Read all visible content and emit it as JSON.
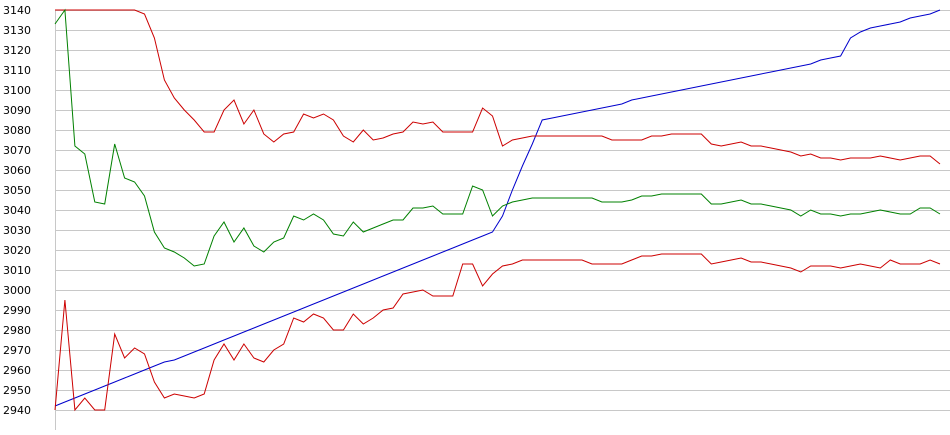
{
  "chart_data": {
    "type": "line",
    "title": "",
    "xlabel": "",
    "ylabel": "",
    "ylim": [
      2940,
      3140
    ],
    "yticks": [
      2940,
      2950,
      2960,
      2970,
      2980,
      2990,
      3000,
      3010,
      3020,
      3030,
      3040,
      3050,
      3060,
      3070,
      3080,
      3090,
      3100,
      3110,
      3120,
      3130,
      3140
    ],
    "grid": true,
    "x": [
      0,
      1,
      2,
      3,
      4,
      5,
      6,
      7,
      8,
      9,
      10,
      11,
      12,
      13,
      14,
      15,
      16,
      17,
      18,
      19,
      20,
      21,
      22,
      23,
      24,
      25,
      26,
      27,
      28,
      29,
      30,
      31,
      32,
      33,
      34,
      35,
      36,
      37,
      38,
      39,
      40,
      41,
      42,
      43,
      44,
      45,
      46,
      47,
      48,
      49,
      50,
      51,
      52,
      53,
      54,
      55,
      56,
      57,
      58,
      59,
      60,
      61,
      62,
      63,
      64,
      65,
      66,
      67,
      68,
      69,
      70,
      71,
      72,
      73,
      74,
      75,
      76,
      77,
      78,
      79,
      80,
      81,
      82,
      83,
      84,
      85,
      86,
      87,
      88,
      89
    ],
    "series": [
      {
        "color": "#0000cc",
        "values": [
          2942,
          2944,
          2946,
          2948,
          2950,
          2952,
          2954,
          2956,
          2958,
          2960,
          2962,
          2964,
          2965,
          2967,
          2969,
          2971,
          2973,
          2975,
          2977,
          2979,
          2981,
          2983,
          2985,
          2987,
          2989,
          2991,
          2993,
          2995,
          2997,
          2999,
          3001,
          3003,
          3005,
          3007,
          3009,
          3011,
          3013,
          3015,
          3017,
          3019,
          3021,
          3023,
          3025,
          3027,
          3029,
          3037,
          3050,
          3062,
          3073,
          3085,
          3086,
          3087,
          3088,
          3089,
          3090,
          3091,
          3092,
          3093,
          3095,
          3096,
          3097,
          3098,
          3099,
          3100,
          3101,
          3102,
          3103,
          3104,
          3105,
          3106,
          3107,
          3108,
          3109,
          3110,
          3111,
          3112,
          3113,
          3115,
          3116,
          3117,
          3126,
          3129,
          3131,
          3132,
          3133,
          3134,
          3136,
          3137,
          3138,
          3140
        ]
      },
      {
        "color": "#cc0000",
        "values": [
          3140,
          3140,
          3140,
          3140,
          3140,
          3140,
          3140,
          3140,
          3140,
          3138,
          3126,
          3105,
          3096,
          3090,
          3085,
          3079,
          3079,
          3090,
          3095,
          3083,
          3090,
          3078,
          3074,
          3078,
          3079,
          3088,
          3086,
          3088,
          3085,
          3077,
          3074,
          3080,
          3075,
          3076,
          3078,
          3079,
          3084,
          3083,
          3084,
          3079,
          3079,
          3079,
          3079,
          3091,
          3087,
          3072,
          3075,
          3076,
          3077,
          3077,
          3077,
          3077,
          3077,
          3077,
          3077,
          3077,
          3075,
          3075,
          3075,
          3075,
          3077,
          3077,
          3078,
          3078,
          3078,
          3078,
          3073,
          3072,
          3073,
          3074,
          3072,
          3072,
          3071,
          3070,
          3069,
          3067,
          3068,
          3066,
          3066,
          3065,
          3066,
          3066,
          3066,
          3067,
          3066,
          3065,
          3066,
          3067,
          3067,
          3063
        ]
      },
      {
        "color": "#008000",
        "values": [
          3133,
          3140,
          3072,
          3068,
          3044,
          3043,
          3073,
          3056,
          3054,
          3047,
          3029,
          3021,
          3019,
          3016,
          3012,
          3013,
          3027,
          3034,
          3024,
          3031,
          3022,
          3019,
          3024,
          3026,
          3037,
          3035,
          3038,
          3035,
          3028,
          3027,
          3034,
          3029,
          3031,
          3033,
          3035,
          3035,
          3041,
          3041,
          3042,
          3038,
          3038,
          3038,
          3052,
          3050,
          3037,
          3042,
          3044,
          3045,
          3046,
          3046,
          3046,
          3046,
          3046,
          3046,
          3046,
          3044,
          3044,
          3044,
          3045,
          3047,
          3047,
          3048,
          3048,
          3048,
          3048,
          3048,
          3043,
          3043,
          3044,
          3045,
          3043,
          3043,
          3042,
          3041,
          3040,
          3037,
          3040,
          3038,
          3038,
          3037,
          3038,
          3038,
          3039,
          3040,
          3039,
          3038,
          3038,
          3041,
          3041,
          3038
        ]
      },
      {
        "color": "#cc0000",
        "values": [
          2940,
          2995,
          2940,
          2946,
          2940,
          2940,
          2978,
          2966,
          2971,
          2968,
          2954,
          2946,
          2948,
          2947,
          2946,
          2948,
          2965,
          2973,
          2965,
          2973,
          2966,
          2964,
          2970,
          2973,
          2986,
          2984,
          2988,
          2986,
          2980,
          2980,
          2988,
          2983,
          2986,
          2990,
          2991,
          2998,
          2999,
          3000,
          2997,
          2997,
          2997,
          3013,
          3013,
          3002,
          3008,
          3012,
          3013,
          3015,
          3015,
          3015,
          3015,
          3015,
          3015,
          3015,
          3013,
          3013,
          3013,
          3013,
          3015,
          3017,
          3017,
          3018,
          3018,
          3018,
          3018,
          3018,
          3013,
          3014,
          3015,
          3016,
          3014,
          3014,
          3013,
          3012,
          3011,
          3009,
          3012,
          3012,
          3012,
          3011,
          3012,
          3013,
          3012,
          3011,
          3015,
          3013,
          3013,
          3013,
          3015,
          3013
        ]
      }
    ]
  }
}
